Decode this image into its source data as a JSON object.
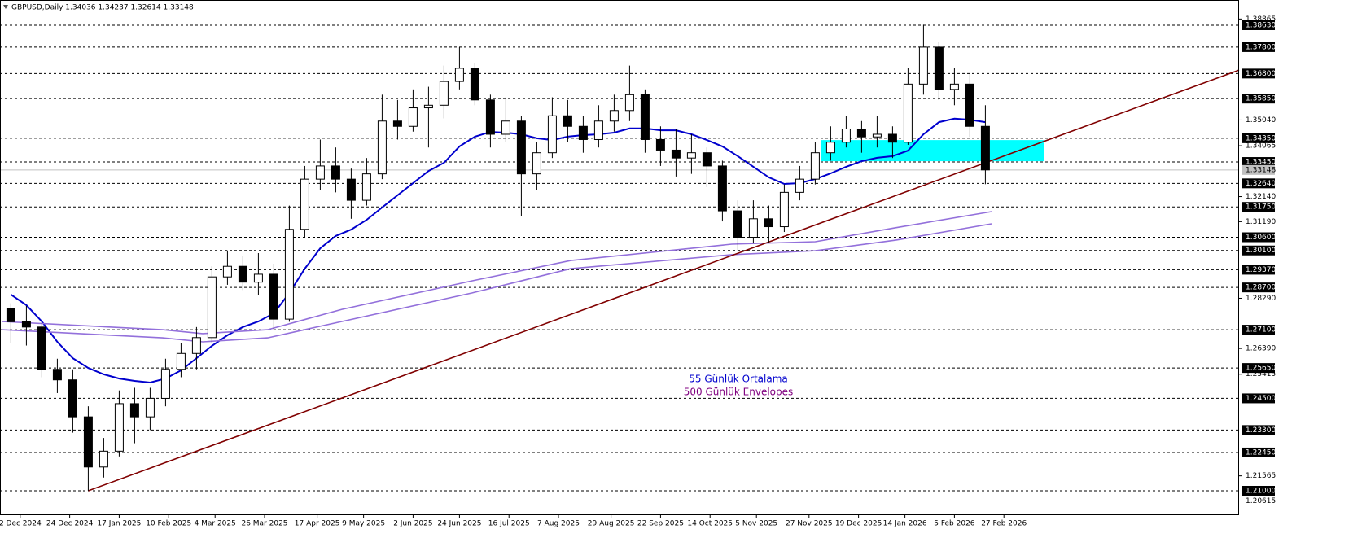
{
  "chart_data": {
    "type": "candlestick",
    "title": "GBPUSD,Daily  1.34036 1.34237 1.32614 1.33148",
    "xlim": [
      -0.53,
      400
    ],
    "ylim": [
      1.20106,
      1.39585
    ],
    "xticks": [
      {
        "value": 6,
        "label": "2 Dec 2024"
      },
      {
        "value": 22,
        "label": "24 Dec 2024"
      },
      {
        "value": 38,
        "label": "17 Jan 2025"
      },
      {
        "value": 54,
        "label": "10 Feb 2025"
      },
      {
        "value": 69,
        "label": "4 Mar 2025"
      },
      {
        "value": 85,
        "label": "26 Mar 2025"
      },
      {
        "value": 102,
        "label": "17 Apr 2025"
      },
      {
        "value": 117,
        "label": "9 May 2025"
      },
      {
        "value": 133,
        "label": "2 Jun 2025"
      },
      {
        "value": 148,
        "label": "24 Jun 2025"
      },
      {
        "value": 164,
        "label": "16 Jul 2025"
      },
      {
        "value": 180,
        "label": "7 Aug 2025"
      },
      {
        "value": 197,
        "label": "29 Aug 2025"
      },
      {
        "value": 213,
        "label": "22 Sep 2025"
      },
      {
        "value": 229,
        "label": "14 Oct 2025"
      },
      {
        "value": 244,
        "label": "5 Nov 2025"
      },
      {
        "value": 261,
        "label": "27 Nov 2025"
      },
      {
        "value": 277,
        "label": "19 Dec 2025"
      },
      {
        "value": 292,
        "label": "14 Jan 2026"
      },
      {
        "value": 308,
        "label": "5 Feb 2026"
      },
      {
        "value": 324,
        "label": "27 Feb 2026"
      }
    ],
    "yticks": [
      {
        "value": 1.38865,
        "label": "1.38865"
      },
      {
        "value": 1.3504,
        "label": "1.35040"
      },
      {
        "value": 1.34065,
        "label": "1.34065"
      },
      {
        "value": 1.3214,
        "label": "1.32140"
      },
      {
        "value": 1.3119,
        "label": "1.31190"
      },
      {
        "value": 1.2829,
        "label": "1.28290"
      },
      {
        "value": 1.2639,
        "label": "1.26390"
      },
      {
        "value": 1.25415,
        "label": "1.25415"
      },
      {
        "value": 1.21565,
        "label": "1.21565"
      },
      {
        "value": 1.20615,
        "label": "1.20615"
      }
    ],
    "levels": [
      {
        "value": 1.3863,
        "label": "1.38630"
      },
      {
        "value": 1.378,
        "label": "1.37800"
      },
      {
        "value": 1.368,
        "label": "1.36800"
      },
      {
        "value": 1.3585,
        "label": "1.35850"
      },
      {
        "value": 1.3435,
        "label": "1.34350"
      },
      {
        "value": 1.3345,
        "label": "1.33450"
      },
      {
        "value": 1.3264,
        "label": "1.32640"
      },
      {
        "value": 1.3175,
        "label": "1.31750"
      },
      {
        "value": 1.306,
        "label": "1.30600"
      },
      {
        "value": 1.301,
        "label": "1.30100"
      },
      {
        "value": 1.2937,
        "label": "1.29370"
      },
      {
        "value": 1.287,
        "label": "1.28700"
      },
      {
        "value": 1.271,
        "label": "1.27100"
      },
      {
        "value": 1.2565,
        "label": "1.25650"
      },
      {
        "value": 1.245,
        "label": "1.24500"
      },
      {
        "value": 1.233,
        "label": "1.23300"
      },
      {
        "value": 1.2245,
        "label": "1.22450"
      },
      {
        "value": 1.21,
        "label": "1.21000"
      }
    ],
    "last_price": {
      "value": 1.33148,
      "label": "1.33148"
    },
    "x": [
      3,
      8,
      13,
      18,
      23,
      28,
      33,
      38,
      43,
      48,
      53,
      58,
      63,
      68,
      73,
      78,
      83,
      88,
      93,
      98,
      103,
      108,
      113,
      118,
      123,
      128,
      133,
      138,
      143,
      148,
      153,
      158,
      163,
      168,
      173,
      178,
      183,
      188,
      193,
      198,
      203,
      208,
      213,
      218,
      223,
      228,
      233,
      238,
      243,
      248,
      253,
      258,
      263,
      268,
      273,
      278,
      283,
      288,
      293,
      298,
      303,
      308,
      313,
      318
    ],
    "ohlc": [
      [
        1.279,
        1.281,
        1.266,
        1.274
      ],
      [
        1.274,
        1.28,
        1.265,
        1.272
      ],
      [
        1.272,
        1.274,
        1.253,
        1.256
      ],
      [
        1.256,
        1.26,
        1.247,
        1.252
      ],
      [
        1.252,
        1.256,
        1.232,
        1.238
      ],
      [
        1.238,
        1.242,
        1.21,
        1.219
      ],
      [
        1.219,
        1.23,
        1.215,
        1.225
      ],
      [
        1.225,
        1.248,
        1.223,
        1.243
      ],
      [
        1.243,
        1.249,
        1.228,
        1.238
      ],
      [
        1.238,
        1.249,
        1.233,
        1.245
      ],
      [
        1.245,
        1.26,
        1.242,
        1.256
      ],
      [
        1.256,
        1.266,
        1.253,
        1.262
      ],
      [
        1.262,
        1.272,
        1.256,
        1.268
      ],
      [
        1.268,
        1.295,
        1.266,
        1.291
      ],
      [
        1.291,
        1.301,
        1.288,
        1.295
      ],
      [
        1.295,
        1.299,
        1.286,
        1.289
      ],
      [
        1.289,
        1.3,
        1.284,
        1.292
      ],
      [
        1.292,
        1.296,
        1.271,
        1.275
      ],
      [
        1.275,
        1.318,
        1.274,
        1.309
      ],
      [
        1.309,
        1.333,
        1.306,
        1.328
      ],
      [
        1.328,
        1.343,
        1.324,
        1.333
      ],
      [
        1.333,
        1.34,
        1.323,
        1.328
      ],
      [
        1.328,
        1.332,
        1.313,
        1.32
      ],
      [
        1.32,
        1.336,
        1.318,
        1.33
      ],
      [
        1.33,
        1.36,
        1.328,
        1.35
      ],
      [
        1.35,
        1.358,
        1.343,
        1.348
      ],
      [
        1.348,
        1.362,
        1.346,
        1.355
      ],
      [
        1.355,
        1.363,
        1.34,
        1.356
      ],
      [
        1.356,
        1.371,
        1.351,
        1.365
      ],
      [
        1.365,
        1.378,
        1.362,
        1.37
      ],
      [
        1.37,
        1.372,
        1.356,
        1.358
      ],
      [
        1.358,
        1.36,
        1.34,
        1.345
      ],
      [
        1.345,
        1.359,
        1.342,
        1.35
      ],
      [
        1.35,
        1.352,
        1.314,
        1.33
      ],
      [
        1.33,
        1.342,
        1.324,
        1.338
      ],
      [
        1.338,
        1.359,
        1.336,
        1.352
      ],
      [
        1.352,
        1.358,
        1.342,
        1.348
      ],
      [
        1.348,
        1.352,
        1.338,
        1.343
      ],
      [
        1.343,
        1.356,
        1.34,
        1.35
      ],
      [
        1.35,
        1.36,
        1.346,
        1.354
      ],
      [
        1.354,
        1.371,
        1.35,
        1.36
      ],
      [
        1.36,
        1.362,
        1.338,
        1.343
      ],
      [
        1.343,
        1.348,
        1.333,
        1.339
      ],
      [
        1.339,
        1.347,
        1.329,
        1.336
      ],
      [
        1.336,
        1.345,
        1.33,
        1.338
      ],
      [
        1.338,
        1.34,
        1.325,
        1.333
      ],
      [
        1.333,
        1.335,
        1.312,
        1.316
      ],
      [
        1.316,
        1.32,
        1.301,
        1.306
      ],
      [
        1.306,
        1.32,
        1.304,
        1.313
      ],
      [
        1.313,
        1.318,
        1.304,
        1.31
      ],
      [
        1.31,
        1.326,
        1.308,
        1.323
      ],
      [
        1.323,
        1.333,
        1.32,
        1.328
      ],
      [
        1.328,
        1.342,
        1.326,
        1.338
      ],
      [
        1.338,
        1.348,
        1.335,
        1.342
      ],
      [
        1.342,
        1.352,
        1.34,
        1.347
      ],
      [
        1.347,
        1.35,
        1.338,
        1.344
      ],
      [
        1.344,
        1.352,
        1.34,
        1.345
      ],
      [
        1.345,
        1.348,
        1.336,
        1.342
      ],
      [
        1.342,
        1.37,
        1.341,
        1.364
      ],
      [
        1.364,
        1.3865,
        1.36,
        1.378
      ],
      [
        1.378,
        1.38,
        1.358,
        1.362
      ],
      [
        1.362,
        1.37,
        1.356,
        1.364
      ],
      [
        1.364,
        1.368,
        1.344,
        1.348
      ],
      [
        1.348,
        1.356,
        1.3261,
        1.3315
      ]
    ],
    "lines": [
      {
        "color": "#0000cd",
        "values": [
          1.2843,
          1.2803,
          1.2741,
          1.2664,
          1.2602,
          1.2565,
          1.2541,
          1.2525,
          1.2516,
          1.251,
          1.2525,
          1.2556,
          1.2602,
          1.2649,
          1.2689,
          1.272,
          1.2741,
          1.2772,
          1.2849,
          1.2941,
          1.3018,
          1.3065,
          1.3089,
          1.3126,
          1.3173,
          1.3219,
          1.3265,
          1.3311,
          1.3342,
          1.3404,
          1.3441,
          1.3459,
          1.3456,
          1.345,
          1.3435,
          1.3428,
          1.3441,
          1.3447,
          1.345,
          1.3456,
          1.3472,
          1.3472,
          1.3465,
          1.3465,
          1.345,
          1.3428,
          1.3404,
          1.3367,
          1.3327,
          1.3287,
          1.3262,
          1.3265,
          1.328,
          1.3302,
          1.3327,
          1.3348,
          1.3361,
          1.3367,
          1.3388,
          1.345,
          1.3496,
          1.3509,
          1.3505,
          1.3496
        ]
      },
      {
        "color": "#9370db",
        "x": [
          0,
          52,
          65,
          86,
          110,
          152,
          184,
          236,
          263,
          289,
          320
        ],
        "values": [
          1.2741,
          1.271,
          1.2695,
          1.271,
          1.2787,
          1.2895,
          1.2972,
          1.3034,
          1.3043,
          1.3096,
          1.3157
        ]
      },
      {
        "color": "#9370db",
        "x": [
          0,
          52,
          65,
          86,
          110,
          152,
          184,
          236,
          263,
          289,
          320
        ],
        "values": [
          1.271,
          1.2679,
          1.2664,
          1.2679,
          1.2741,
          1.2849,
          1.2941,
          1.2994,
          1.3009,
          1.3049,
          1.3111
        ]
      },
      {
        "color": "#800000",
        "x": [
          28,
          400
        ],
        "values": [
          1.21,
          1.3693
        ]
      }
    ],
    "zone": {
      "color": "#00ffff",
      "x": [
        265,
        337
      ],
      "values": [
        1.3348,
        1.3428
      ]
    },
    "annotations": [
      {
        "text": "55 Günlük Ortalama",
        "color": "#0000cd"
      },
      {
        "text": "500 Günlük Envelopes",
        "color": "#800080"
      }
    ]
  }
}
